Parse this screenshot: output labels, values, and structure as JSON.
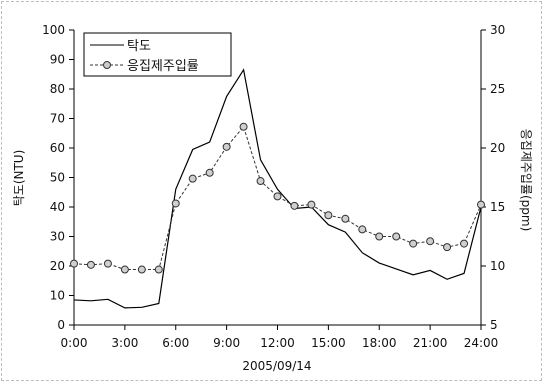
{
  "chart_data": {
    "type": "line",
    "xlabel": "2005/09/14",
    "ylabel_left": "탁도(NTU)",
    "ylabel_right": "응집제주입률(ppm)",
    "x_ticks": [
      "0:00",
      "3:00",
      "6:00",
      "9:00",
      "12:00",
      "15:00",
      "18:00",
      "21:00",
      "24:00"
    ],
    "xlim": [
      0,
      24
    ],
    "ylim_left": [
      0,
      100
    ],
    "ylim_right": [
      5,
      30
    ],
    "yticks_left": [
      0,
      10,
      20,
      30,
      40,
      50,
      60,
      70,
      80,
      90,
      100
    ],
    "yticks_right": [
      5,
      10,
      15,
      20,
      25,
      30
    ],
    "grid": false,
    "legend_position": "top-left",
    "series": [
      {
        "name": "탁도",
        "axis": "left",
        "marker": "none",
        "x": [
          0,
          1,
          2,
          3,
          4,
          5,
          6,
          7,
          8,
          9,
          10,
          11,
          12,
          13,
          14,
          15,
          16,
          17,
          18,
          19,
          20,
          21,
          22,
          23,
          24
        ],
        "values": [
          8.5,
          8.2,
          8.7,
          5.8,
          6.0,
          7.3,
          46,
          59.5,
          62,
          77.5,
          86.5,
          56,
          46,
          39.5,
          40,
          34,
          31.5,
          24.5,
          21,
          19,
          17,
          18.5,
          15.5,
          17.5,
          40
        ]
      },
      {
        "name": "응집제주입률",
        "axis": "right",
        "marker": "circle",
        "x": [
          0,
          1,
          2,
          3,
          4,
          5,
          6,
          7,
          8,
          9,
          10,
          11,
          12,
          13,
          14,
          15,
          16,
          17,
          18,
          19,
          20,
          21,
          22,
          23,
          24
        ],
        "values": [
          10.2,
          10.1,
          10.2,
          9.7,
          9.7,
          9.7,
          15.3,
          17.4,
          17.9,
          20.1,
          21.8,
          17.2,
          15.9,
          15.1,
          15.2,
          14.3,
          14.0,
          13.1,
          12.5,
          12.5,
          11.9,
          12.1,
          11.6,
          11.9,
          15.2
        ]
      }
    ]
  }
}
